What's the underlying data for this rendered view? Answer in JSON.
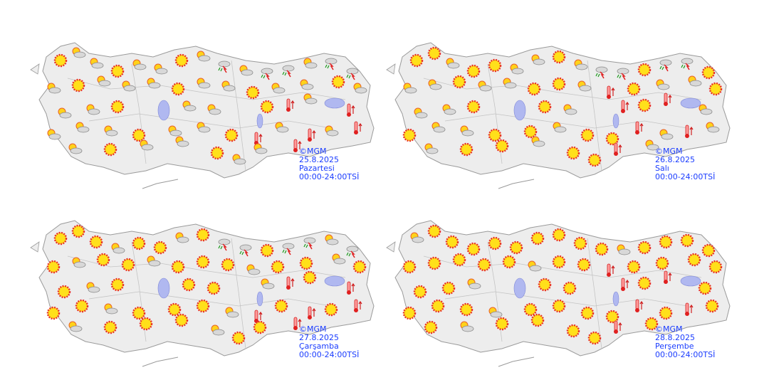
{
  "panels": [
    {
      "copyright": "©MGM",
      "date": "25.8.2025",
      "day": "Pazartesi",
      "time": "00:00-24:00TSİ"
    },
    {
      "copyright": "©MGM",
      "date": "26.8.2025",
      "day": "Salı",
      "time": "00:00-24:00TSİ"
    },
    {
      "copyright": "©MGM",
      "date": "27.8.2025",
      "day": "Çarşamba",
      "time": "00:00-24:00TSİ"
    },
    {
      "copyright": "©MGM",
      "date": "28.8.2025",
      "day": "Perşembe",
      "time": "00:00-24:00TSİ"
    }
  ]
}
